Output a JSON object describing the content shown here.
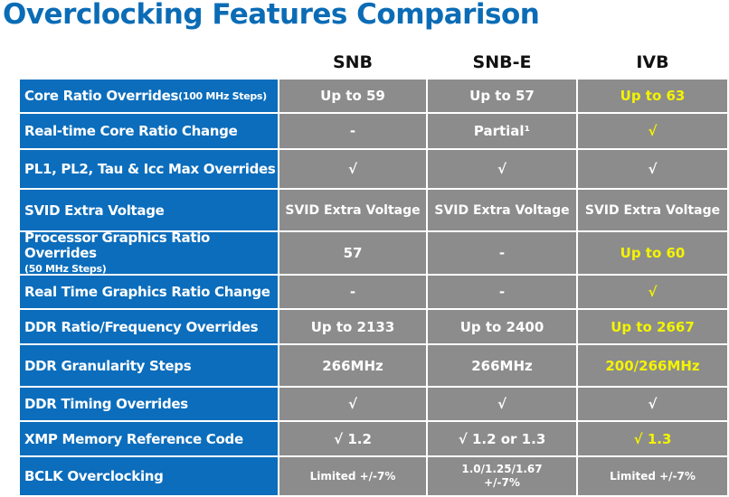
{
  "title": "Overclocking Features Comparison",
  "columns": [
    "SNB",
    "SNB-E",
    "IVB"
  ],
  "rows": [
    {
      "label": "Core Ratio Overrides",
      "label_note": " (100 MHz Steps)",
      "snb": "Up to 59",
      "snbe": "Up to 57",
      "ivb": "Up to 63",
      "ivb_highlight": true
    },
    {
      "label": "Real-time Core Ratio Change",
      "snb": "-",
      "snbe": "Partial¹",
      "ivb": "√",
      "ivb_highlight": true
    },
    {
      "label": "PL1, PL2, Tau & Icc Max Overrides",
      "snb": "√",
      "snbe": "√",
      "ivb": "√",
      "ivb_highlight": false
    },
    {
      "label": "SVID Extra Voltage",
      "snb": "SVID Extra Voltage",
      "snbe": "SVID Extra Voltage",
      "ivb": "SVID Extra Voltage",
      "ivb_highlight": false
    },
    {
      "label": "Processor Graphics Ratio Overrides",
      "label_note": "(50 MHz Steps)",
      "snb": "57",
      "snbe": "-",
      "ivb": "Up to 60",
      "ivb_highlight": true
    },
    {
      "label": "Real Time Graphics Ratio Change",
      "snb": "-",
      "snbe": "-",
      "ivb": "√",
      "ivb_highlight": true
    },
    {
      "label": "DDR Ratio/Frequency Overrides",
      "snb": "Up to 2133",
      "snbe": "Up to 2400",
      "ivb": "Up to 2667",
      "ivb_highlight": true
    },
    {
      "label": "DDR Granularity Steps",
      "snb": "266MHz",
      "snbe": "266MHz",
      "ivb": "200/266MHz",
      "ivb_highlight": true
    },
    {
      "label": "DDR Timing Overrides",
      "snb": "√",
      "snbe": "√",
      "ivb": "√",
      "ivb_highlight": false
    },
    {
      "label": "XMP Memory Reference Code",
      "snb": "√ 1.2",
      "snbe": "√ 1.2 or 1.3",
      "ivb": "√ 1.3",
      "ivb_highlight": true
    },
    {
      "label": "BCLK Overclocking",
      "snb": "Limited +/-7%",
      "snbe_line1": "1.0/1.25/1.67",
      "snbe_line2": "+/-7%",
      "ivb": "Limited +/-7%",
      "ivb_highlight": false
    }
  ],
  "colors": {
    "title": "#0b6cb6",
    "label_bg": "#0b6dbc",
    "cell_bg": "#8c8c8c",
    "highlight_text": "#f4f400"
  }
}
